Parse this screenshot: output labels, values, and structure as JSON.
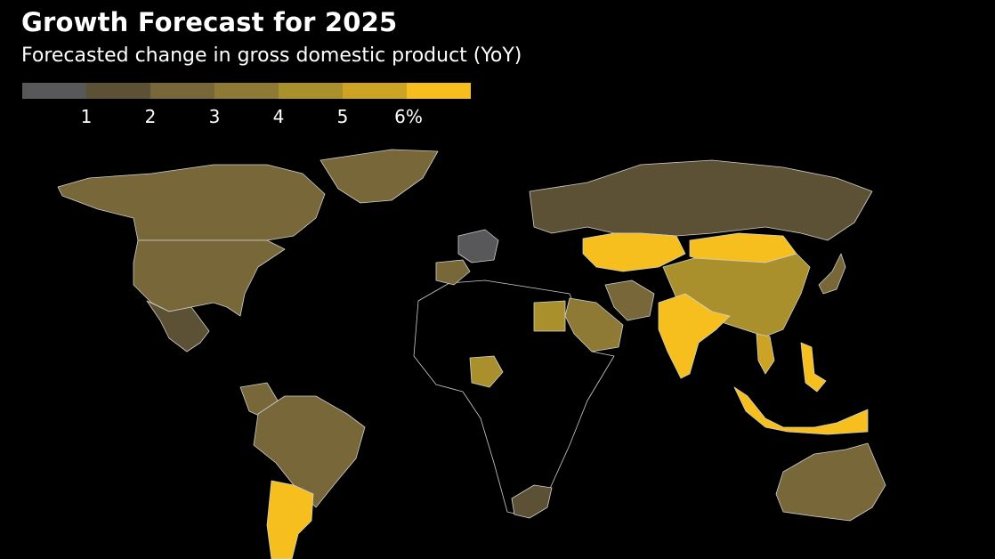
{
  "title": "Growth Forecast for 2025",
  "subtitle": "Forecasted change in gross domestic product (YoY)",
  "legend": {
    "colors": [
      "#58585a",
      "#5c5134",
      "#776739",
      "#8f7a35",
      "#a9902c",
      "#cca322",
      "#f6bf1d"
    ],
    "ticks": [
      "1",
      "2",
      "3",
      "4",
      "5",
      "6%"
    ]
  },
  "regions": [
    {
      "name": "Canada",
      "color": "#776739"
    },
    {
      "name": "United States",
      "color": "#776739"
    },
    {
      "name": "Greenland",
      "color": "#776739"
    },
    {
      "name": "Mexico",
      "color": "#5c5134"
    },
    {
      "name": "Brazil",
      "color": "#776739"
    },
    {
      "name": "Argentina",
      "color": "#f6bf1d"
    },
    {
      "name": "Colombia",
      "color": "#776739"
    },
    {
      "name": "Germany",
      "color": "#58585a"
    },
    {
      "name": "Spain",
      "color": "#776739"
    },
    {
      "name": "Russia",
      "color": "#5c5134"
    },
    {
      "name": "Kazakhstan",
      "color": "#f6bf1d"
    },
    {
      "name": "China",
      "color": "#a9902c"
    },
    {
      "name": "Mongolia",
      "color": "#f6bf1d"
    },
    {
      "name": "India",
      "color": "#f6bf1d"
    },
    {
      "name": "Iran",
      "color": "#776739"
    },
    {
      "name": "Saudi Arabia",
      "color": "#8f7a35"
    },
    {
      "name": "Egypt",
      "color": "#a9902c"
    },
    {
      "name": "Nigeria",
      "color": "#a9902c"
    },
    {
      "name": "South Africa",
      "color": "#5c5134"
    },
    {
      "name": "Indonesia",
      "color": "#f6bf1d"
    },
    {
      "name": "Philippines",
      "color": "#f6bf1d"
    },
    {
      "name": "Vietnam",
      "color": "#cca322"
    },
    {
      "name": "Australia",
      "color": "#776739"
    },
    {
      "name": "Japan",
      "color": "#776739"
    },
    {
      "name": "Africa (other)",
      "color": "#000000"
    }
  ]
}
